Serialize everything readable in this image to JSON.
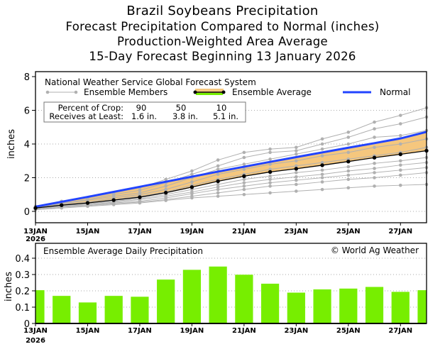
{
  "titles": [
    "Brazil Soybeans Precipitation",
    "Forecast Precipitation Compared to Normal (inches)",
    "Production-Weighted Area Average",
    "15-Day Forecast Beginning 13 January 2026"
  ],
  "colors": {
    "normal": "#2244ff",
    "band": "#f5c77e",
    "member": "#b0b0b0",
    "average": "#000000",
    "bar": "#77ee00"
  },
  "chart_data": [
    {
      "type": "line",
      "title": "National Weather Service Global Forecast System",
      "ylabel": "inches",
      "ylim": [
        0,
        8
      ],
      "yticks": [
        "0",
        "2",
        "4",
        "6",
        "8"
      ],
      "x": [
        "13JAN",
        "14JAN",
        "15JAN",
        "16JAN",
        "17JAN",
        "18JAN",
        "19JAN",
        "20JAN",
        "21JAN",
        "22JAN",
        "23JAN",
        "24JAN",
        "25JAN",
        "26JAN",
        "27JAN",
        "28JAN"
      ],
      "xtick_labels": [
        "13JAN",
        "15JAN",
        "17JAN",
        "19JAN",
        "21JAN",
        "23JAN",
        "25JAN",
        "27JAN"
      ],
      "xtick_year": "2026",
      "legend": {
        "members": "Ensemble Members",
        "average": "Ensemble Average",
        "normal": "Normal"
      },
      "crop_table": {
        "row1_label": "Percent of Crop:",
        "row2_label": "Receives at Least:",
        "percents": [
          "90",
          "50",
          "10"
        ],
        "amounts": [
          "1.6 in.",
          "3.8 in.",
          "5.1 in."
        ]
      },
      "normal": [
        0.28,
        0.57,
        0.86,
        1.16,
        1.46,
        1.76,
        2.06,
        2.36,
        2.65,
        2.94,
        3.22,
        3.5,
        3.78,
        4.05,
        4.33,
        4.72
      ],
      "average": [
        0.2,
        0.37,
        0.5,
        0.67,
        0.84,
        1.11,
        1.44,
        1.79,
        2.09,
        2.34,
        2.53,
        2.74,
        2.96,
        3.19,
        3.39,
        3.6
      ],
      "members": [
        [
          0.3,
          0.6,
          0.8,
          1.1,
          1.4,
          1.9,
          2.4,
          3.05,
          3.5,
          3.7,
          3.8,
          4.3,
          4.7,
          5.3,
          5.7,
          6.15
        ],
        [
          0.25,
          0.5,
          0.7,
          1.0,
          1.25,
          1.7,
          2.2,
          2.7,
          3.2,
          3.5,
          3.6,
          4.0,
          4.4,
          4.9,
          5.2,
          5.6
        ],
        [
          0.2,
          0.45,
          0.65,
          0.9,
          1.1,
          1.5,
          2.0,
          2.5,
          2.8,
          3.1,
          3.4,
          3.7,
          4.0,
          4.4,
          4.5,
          4.8
        ],
        [
          0.2,
          0.4,
          0.55,
          0.8,
          1.0,
          1.3,
          1.75,
          2.2,
          2.5,
          2.8,
          3.0,
          3.3,
          3.5,
          3.8,
          4.0,
          4.3
        ],
        [
          0.2,
          0.4,
          0.5,
          0.7,
          0.9,
          1.15,
          1.55,
          1.9,
          2.2,
          2.5,
          2.7,
          2.9,
          3.1,
          3.3,
          3.5,
          3.8
        ],
        [
          0.15,
          0.35,
          0.45,
          0.6,
          0.75,
          1.0,
          1.3,
          1.6,
          1.9,
          2.1,
          2.3,
          2.45,
          2.65,
          2.85,
          3.0,
          3.2
        ],
        [
          0.15,
          0.3,
          0.4,
          0.55,
          0.7,
          0.9,
          1.15,
          1.45,
          1.7,
          1.9,
          2.05,
          2.2,
          2.4,
          2.55,
          2.75,
          2.9
        ],
        [
          0.15,
          0.3,
          0.35,
          0.5,
          0.6,
          0.8,
          1.05,
          1.3,
          1.5,
          1.7,
          1.85,
          2.0,
          2.15,
          2.3,
          2.45,
          2.6
        ],
        [
          0.1,
          0.25,
          0.35,
          0.45,
          0.55,
          0.7,
          0.9,
          1.1,
          1.3,
          1.5,
          1.6,
          1.75,
          1.9,
          2.0,
          2.15,
          2.3
        ],
        [
          0.1,
          0.2,
          0.3,
          0.4,
          0.5,
          0.65,
          0.8,
          0.9,
          1.0,
          1.1,
          1.2,
          1.3,
          1.4,
          1.5,
          1.55,
          1.6
        ]
      ]
    },
    {
      "type": "bar",
      "title": "Ensemble Average Daily Precipitation",
      "credit": "© World Ag Weather",
      "ylabel": "inches",
      "ylim": [
        0,
        0.48
      ],
      "yticks": [
        "0",
        "0.1",
        "0.2",
        "0.3",
        "0.4"
      ],
      "categories": [
        "13JAN",
        "14JAN",
        "15JAN",
        "16JAN",
        "17JAN",
        "18JAN",
        "19JAN",
        "20JAN",
        "21JAN",
        "22JAN",
        "23JAN",
        "24JAN",
        "25JAN",
        "26JAN",
        "27JAN",
        "28JAN"
      ],
      "values": [
        0.205,
        0.17,
        0.13,
        0.17,
        0.165,
        0.27,
        0.33,
        0.35,
        0.3,
        0.245,
        0.19,
        0.21,
        0.215,
        0.225,
        0.195,
        0.205
      ]
    }
  ]
}
